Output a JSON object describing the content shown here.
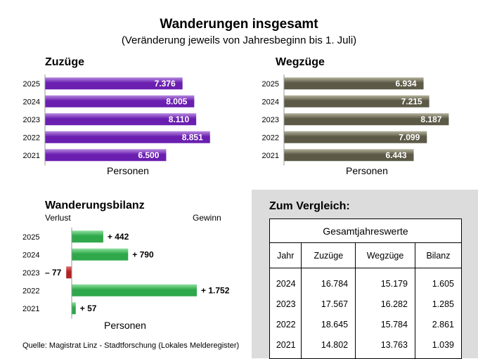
{
  "title": "Wanderungen insgesamt",
  "subtitle": "(Veränderung jeweils von Jahresbeginn bis 1. Juli)",
  "colors": {
    "zuzuege": "#6a1fb0",
    "wegzuege": "#5c5a47",
    "gewinn": "#2ea84a",
    "verlust": "#b02222",
    "panel": "#dcdcdc"
  },
  "chart_data": [
    {
      "type": "bar",
      "orientation": "horizontal",
      "title": "Zuzüge",
      "xlabel": "Personen",
      "categories": [
        "2025",
        "2024",
        "2023",
        "2022",
        "2021"
      ],
      "values": [
        7376,
        8005,
        8110,
        8851,
        6500
      ],
      "value_labels": [
        "7.376",
        "8.005",
        "8.110",
        "8.851",
        "6.500"
      ],
      "xlim": [
        0,
        9500
      ]
    },
    {
      "type": "bar",
      "orientation": "horizontal",
      "title": "Wegzüge",
      "xlabel": "Personen",
      "categories": [
        "2025",
        "2024",
        "2023",
        "2022",
        "2021"
      ],
      "values": [
        6934,
        7215,
        8187,
        7099,
        6443
      ],
      "value_labels": [
        "6.934",
        "7.215",
        "8.187",
        "7.099",
        "6.443"
      ],
      "xlim": [
        0,
        8800
      ]
    },
    {
      "type": "bar",
      "orientation": "horizontal",
      "title": "Wanderungsbilanz",
      "xlabel": "Personen",
      "negative_label": "Verlust",
      "positive_label": "Gewinn",
      "categories": [
        "2025",
        "2024",
        "2023",
        "2022",
        "2021"
      ],
      "values": [
        442,
        790,
        -77,
        1752,
        57
      ],
      "value_labels": [
        "+ 442",
        "+ 790",
        "– 77",
        "+ 1.752",
        "+ 57"
      ],
      "xlim": [
        -120,
        2200
      ]
    },
    {
      "type": "table",
      "title": "Zum Vergleich:",
      "caption": "Gesamtjahreswerte",
      "columns": [
        "Jahr",
        "Zuzüge",
        "Wegzüge",
        "Bilanz"
      ],
      "rows": [
        [
          "2024",
          "16.784",
          "15.179",
          "1.605"
        ],
        [
          "2023",
          "17.567",
          "16.282",
          "1.285"
        ],
        [
          "2022",
          "18.645",
          "15.784",
          "2.861"
        ],
        [
          "2021",
          "14.802",
          "13.763",
          "1.039"
        ]
      ]
    }
  ],
  "source": "Quelle: Magistrat Linz - Stadtforschung (Lokales Melderegister)"
}
